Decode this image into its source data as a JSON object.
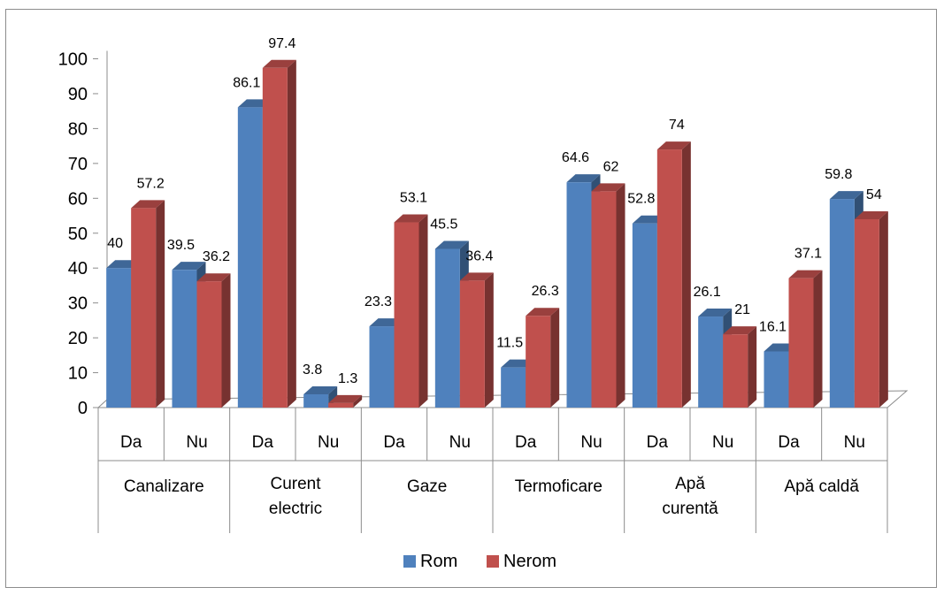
{
  "chart_data": {
    "type": "bar",
    "title": "",
    "xlabel": "",
    "ylabel": "",
    "ylim": [
      0,
      100
    ],
    "yticks": [
      "0",
      "10",
      "20",
      "30",
      "40",
      "50",
      "60",
      "70",
      "80",
      "90",
      "100"
    ],
    "groups": [
      {
        "label": [
          "Canalizare"
        ],
        "subcategories": [
          "Da",
          "Nu"
        ]
      },
      {
        "label": [
          "Curent",
          "electric"
        ],
        "subcategories": [
          "Da",
          "Nu"
        ]
      },
      {
        "label": [
          "Gaze"
        ],
        "subcategories": [
          "Da",
          "Nu"
        ]
      },
      {
        "label": [
          "Termoficare"
        ],
        "subcategories": [
          "Da",
          "Nu"
        ]
      },
      {
        "label": [
          "Apă",
          "curentă"
        ],
        "subcategories": [
          "Da",
          "Nu"
        ]
      },
      {
        "label": [
          "Apă caldă"
        ],
        "subcategories": [
          "Da",
          "Nu"
        ]
      }
    ],
    "series": [
      {
        "name": "Rom",
        "color": "#4F81BD",
        "values": [
          40,
          39.5,
          86.1,
          3.8,
          23.3,
          45.5,
          11.5,
          64.6,
          52.8,
          26.1,
          16.1,
          59.8
        ],
        "labels": [
          "40",
          "39.5",
          "86.1",
          "3.8",
          "23.3",
          "45.5",
          "11.5",
          "64.6",
          "52.8",
          "26.1",
          "16.1",
          "59.8"
        ]
      },
      {
        "name": "Nerom",
        "color": "#C0504D",
        "values": [
          57.2,
          36.2,
          97.4,
          1.3,
          53.1,
          36.4,
          26.3,
          62,
          74,
          21,
          37.1,
          54
        ],
        "labels": [
          "57.2",
          "36.2",
          "97.4",
          "1.3",
          "53.1",
          "36.4",
          "26.3",
          "62",
          "74",
          "21",
          "37.1",
          "54"
        ]
      }
    ],
    "legend": "bottom",
    "grid": false
  }
}
